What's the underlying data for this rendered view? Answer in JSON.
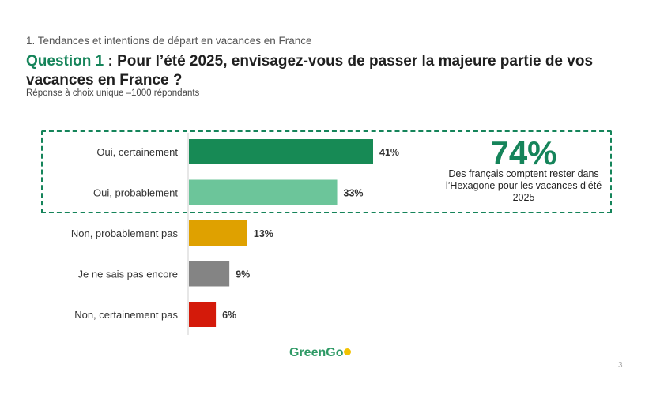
{
  "header": {
    "section": "1. Tendances et intentions de départ en vacances en France",
    "question_label": "Question 1",
    "question_text": " : Pour l’été 2025, envisagez-vous de passer la majeure partie de vos vacances en France ?",
    "subtitle": "Réponse à choix unique –1000 répondants"
  },
  "callout": {
    "value": "74%",
    "text": "Des français comptent rester dans l’Hexagone pour les vacances d’été 2025"
  },
  "footer": {
    "logo": "GreenGo",
    "page_number": "3"
  },
  "chart_data": {
    "type": "bar",
    "orientation": "horizontal",
    "categories": [
      "Oui, certainement",
      "Oui, probablement",
      "Non, probablement pas",
      "Je ne sais pas encore",
      "Non, certainement pas"
    ],
    "values": [
      41,
      33,
      13,
      9,
      6
    ],
    "value_labels": [
      "41%",
      "33%",
      "13%",
      "9%",
      "6%"
    ],
    "colors": [
      "#178a55",
      "#6cc59a",
      "#dfa100",
      "#848484",
      "#d41a0a"
    ],
    "unit": "%",
    "xlim": [
      0,
      100
    ]
  }
}
